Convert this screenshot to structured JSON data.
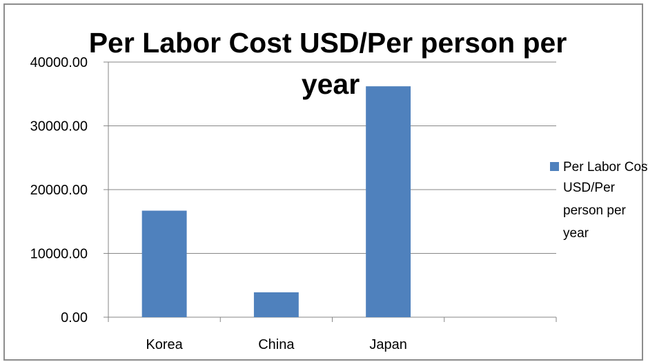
{
  "chart_data": {
    "type": "bar",
    "title_lines": [
      "Per Labor Cost   USD/Per person per",
      "year"
    ],
    "categories": [
      "Korea",
      "China",
      "Japan",
      ""
    ],
    "series": [
      {
        "name": "Per Labor Cost USD/Per person per year",
        "values": [
          16700,
          3900,
          36200,
          null
        ],
        "color": "#4f81bd"
      }
    ],
    "ylim": [
      0,
      40000
    ],
    "yticks": [
      "0.00",
      "10000.00",
      "20000.00",
      "30000.00",
      "40000.00"
    ],
    "grid": true,
    "legend": {
      "position": "right",
      "lines": [
        "Per Labor Cost",
        "USD/Per",
        "person per",
        "year"
      ]
    }
  }
}
